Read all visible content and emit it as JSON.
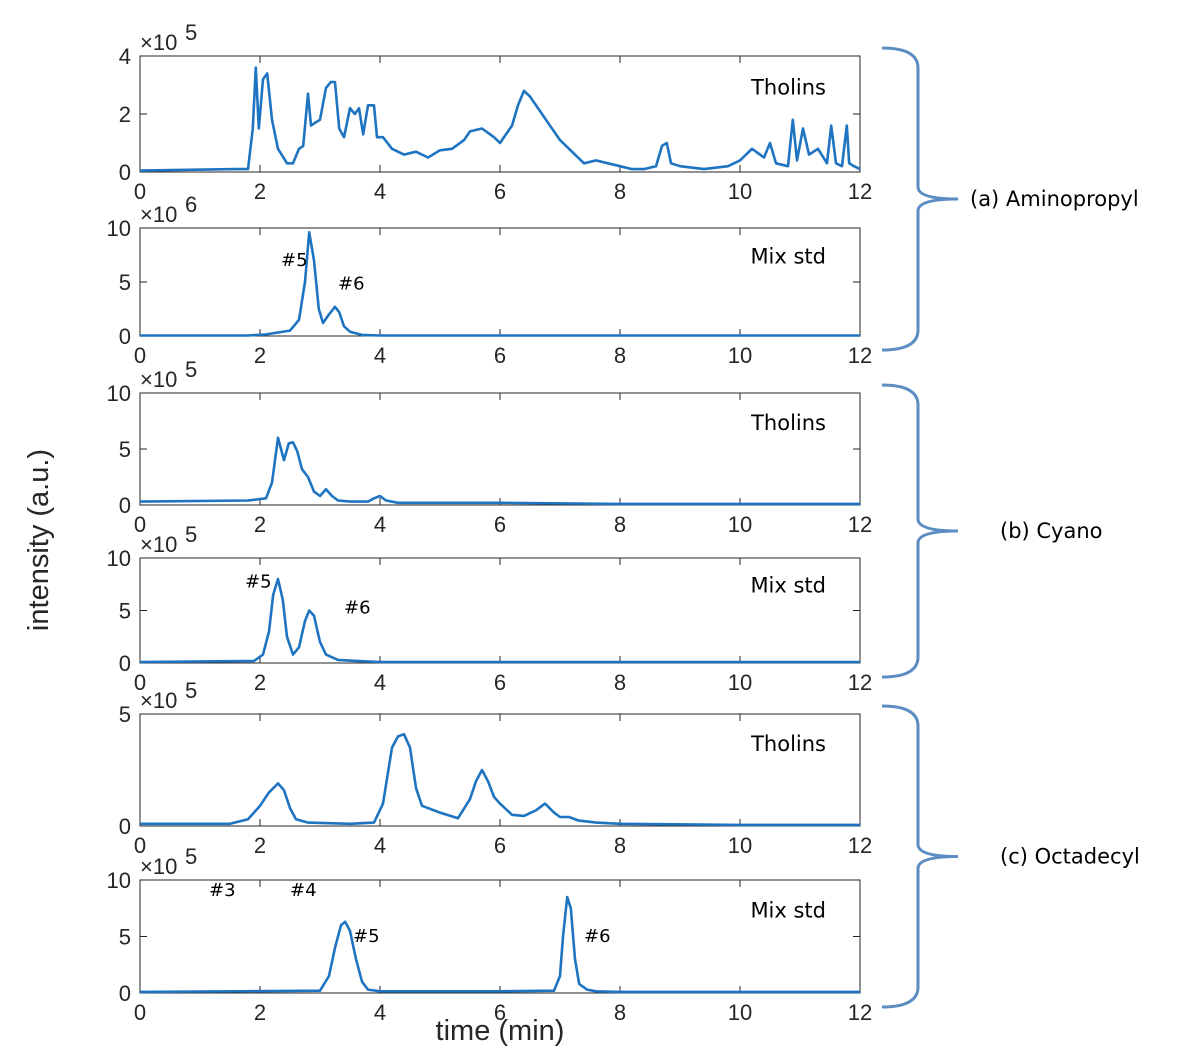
{
  "chart_data": {
    "type": "line",
    "xlabel": "time (min)",
    "ylabel": "intensity (a.u.)",
    "xlim": [
      0,
      12
    ],
    "xticks": [
      0,
      2,
      4,
      6,
      8,
      10,
      12
    ],
    "color": "#1f74c1",
    "grid": false,
    "groups": [
      {
        "label": "(a)   Aminopropyl",
        "panels": [
          0,
          1
        ]
      },
      {
        "label": "(b) Cyano",
        "panels": [
          2,
          3
        ]
      },
      {
        "label": "(c) Octadecyl",
        "panels": [
          4,
          5
        ]
      }
    ],
    "panels": [
      {
        "label": "Tholins",
        "multiplier": "×10",
        "exponent": "5",
        "ylim": [
          0,
          4
        ],
        "yticks": [
          0,
          2,
          4
        ],
        "peak_labels": [],
        "series": [
          {
            "x": [
              0,
              1.6,
              1.8,
              1.88,
              1.93,
              1.98,
              2.05,
              2.12,
              2.2,
              2.3,
              2.45,
              2.55,
              2.65,
              2.72,
              2.8,
              2.85,
              2.92,
              3.0,
              3.1,
              3.18,
              3.25,
              3.32,
              3.4,
              3.5,
              3.58,
              3.65,
              3.72,
              3.8,
              3.9,
              3.95,
              4.05,
              4.2,
              4.4,
              4.6,
              4.8,
              5.0,
              5.2,
              5.4,
              5.5,
              5.7,
              5.9,
              6.0,
              6.2,
              6.3,
              6.4,
              6.5,
              6.6,
              6.8,
              7.0,
              7.2,
              7.4,
              7.6,
              7.8,
              8.0,
              8.2,
              8.4,
              8.6,
              8.7,
              8.78,
              8.85,
              9.0,
              9.4,
              9.8,
              10.0,
              10.2,
              10.4,
              10.5,
              10.6,
              10.8,
              10.88,
              10.95,
              11.05,
              11.15,
              11.3,
              11.45,
              11.52,
              11.6,
              11.7,
              11.78,
              11.82,
              11.9,
              12.0
            ],
            "y": [
              0.05,
              0.1,
              0.1,
              1.5,
              3.6,
              1.5,
              3.2,
              3.4,
              1.8,
              0.8,
              0.3,
              0.3,
              0.8,
              0.9,
              2.7,
              1.6,
              1.7,
              1.8,
              2.9,
              3.1,
              3.1,
              1.5,
              1.2,
              2.2,
              2.0,
              2.2,
              1.3,
              2.3,
              2.3,
              1.2,
              1.2,
              0.8,
              0.6,
              0.7,
              0.5,
              0.75,
              0.8,
              1.1,
              1.4,
              1.5,
              1.2,
              1.0,
              1.6,
              2.3,
              2.8,
              2.6,
              2.3,
              1.7,
              1.1,
              0.7,
              0.3,
              0.4,
              0.3,
              0.2,
              0.1,
              0.1,
              0.2,
              0.9,
              1.0,
              0.3,
              0.2,
              0.1,
              0.2,
              0.4,
              0.8,
              0.5,
              1.0,
              0.3,
              0.2,
              1.8,
              0.4,
              1.5,
              0.6,
              0.8,
              0.3,
              1.6,
              0.3,
              0.2,
              1.6,
              0.3,
              0.2,
              0.1
            ]
          }
        ]
      },
      {
        "label": "Mix std",
        "multiplier": "×10",
        "exponent": "6",
        "ylim": [
          0,
          10
        ],
        "yticks": [
          0,
          5,
          10
        ],
        "peak_labels": [
          {
            "text": "#5",
            "x": 2.35,
            "y": 6.5
          },
          {
            "text": "#6",
            "x": 3.3,
            "y": 4.3
          }
        ],
        "series": [
          {
            "x": [
              0,
              1.8,
              2.1,
              2.5,
              2.65,
              2.75,
              2.82,
              2.9,
              2.98,
              3.05,
              3.15,
              3.25,
              3.32,
              3.4,
              3.5,
              3.7,
              4.0,
              6.0,
              8.0,
              10.0,
              12.0
            ],
            "y": [
              0.05,
              0.05,
              0.15,
              0.5,
              1.5,
              5.0,
              9.6,
              7.0,
              2.5,
              1.2,
              2.0,
              2.7,
              2.2,
              0.9,
              0.4,
              0.1,
              0.05,
              0.05,
              0.05,
              0.05,
              0.05
            ]
          }
        ]
      },
      {
        "label": "Tholins",
        "multiplier": "×10",
        "exponent": "5",
        "ylim": [
          0,
          10
        ],
        "yticks": [
          0,
          5,
          10
        ],
        "peak_labels": [],
        "series": [
          {
            "x": [
              0,
              1.8,
              2.1,
              2.2,
              2.3,
              2.4,
              2.48,
              2.55,
              2.62,
              2.7,
              2.8,
              2.9,
              3.0,
              3.1,
              3.2,
              3.3,
              3.5,
              3.8,
              3.9,
              4.0,
              4.1,
              4.3,
              5.0,
              6.0,
              8.0,
              10.0,
              12.0
            ],
            "y": [
              0.3,
              0.4,
              0.6,
              2.0,
              6.0,
              4.0,
              5.5,
              5.6,
              4.8,
              3.2,
              2.5,
              1.2,
              0.8,
              1.4,
              0.8,
              0.4,
              0.3,
              0.3,
              0.6,
              0.8,
              0.4,
              0.2,
              0.2,
              0.2,
              0.1,
              0.1,
              0.1
            ]
          }
        ]
      },
      {
        "label": "Mix std",
        "multiplier": "×10",
        "exponent": "5",
        "ylim": [
          0,
          10
        ],
        "yticks": [
          0,
          5,
          10
        ],
        "peak_labels": [
          {
            "text": "#5",
            "x": 1.75,
            "y": 7.2
          },
          {
            "text": "#6",
            "x": 3.4,
            "y": 4.7
          }
        ],
        "series": [
          {
            "x": [
              0,
              1.9,
              2.05,
              2.15,
              2.22,
              2.3,
              2.38,
              2.45,
              2.55,
              2.65,
              2.75,
              2.82,
              2.9,
              3.0,
              3.1,
              3.3,
              3.6,
              4.0,
              6.0,
              8.0,
              10.0,
              12.0
            ],
            "y": [
              0.1,
              0.2,
              0.8,
              3.0,
              6.5,
              8.0,
              6.0,
              2.5,
              0.8,
              1.5,
              4.0,
              5.0,
              4.5,
              2.0,
              0.8,
              0.3,
              0.2,
              0.1,
              0.1,
              0.1,
              0.1,
              0.1
            ]
          }
        ]
      },
      {
        "label": "Tholins",
        "multiplier": "×10",
        "exponent": "5",
        "ylim": [
          0,
          5
        ],
        "yticks": [
          0,
          5
        ],
        "peak_labels": [],
        "series": [
          {
            "x": [
              0,
              1.5,
              1.8,
              2.0,
              2.15,
              2.3,
              2.4,
              2.5,
              2.6,
              2.8,
              3.5,
              3.9,
              4.05,
              4.2,
              4.3,
              4.4,
              4.5,
              4.6,
              4.7,
              5.0,
              5.3,
              5.5,
              5.6,
              5.7,
              5.8,
              5.9,
              6.0,
              6.2,
              6.4,
              6.6,
              6.75,
              6.9,
              7.0,
              7.15,
              7.3,
              7.6,
              8.0,
              10.0,
              12.0
            ],
            "y": [
              0.1,
              0.1,
              0.3,
              0.9,
              1.5,
              1.9,
              1.6,
              0.8,
              0.3,
              0.15,
              0.1,
              0.15,
              1.0,
              3.5,
              4.0,
              4.1,
              3.5,
              1.7,
              0.9,
              0.6,
              0.35,
              1.2,
              2.0,
              2.5,
              2.0,
              1.3,
              1.0,
              0.5,
              0.45,
              0.7,
              1.0,
              0.6,
              0.4,
              0.4,
              0.25,
              0.15,
              0.1,
              0.05,
              0.05
            ]
          }
        ]
      },
      {
        "label": "Mix std",
        "multiplier": "×10",
        "exponent": "5",
        "ylim": [
          0,
          10
        ],
        "yticks": [
          0,
          5,
          10
        ],
        "peak_labels": [
          {
            "text": "#3",
            "x": 1.15,
            "y": 8.6
          },
          {
            "text": "#4",
            "x": 2.5,
            "y": 8.6
          },
          {
            "text": "#5",
            "x": 3.55,
            "y": 4.5
          },
          {
            "text": "#6",
            "x": 7.4,
            "y": 4.5
          }
        ],
        "series": [
          {
            "x": [
              0,
              3.0,
              3.15,
              3.25,
              3.35,
              3.42,
              3.5,
              3.6,
              3.7,
              3.8,
              4.0,
              6.0,
              6.9,
              7.0,
              7.05,
              7.12,
              7.18,
              7.25,
              7.32,
              7.45,
              7.6,
              8.0,
              10.0,
              12.0
            ],
            "y": [
              0.1,
              0.2,
              1.5,
              4.0,
              6.0,
              6.3,
              5.5,
              3.0,
              1.0,
              0.3,
              0.15,
              0.15,
              0.2,
              1.5,
              5.0,
              8.5,
              7.5,
              3.0,
              0.8,
              0.3,
              0.15,
              0.1,
              0.1,
              0.1
            ]
          }
        ]
      }
    ]
  }
}
